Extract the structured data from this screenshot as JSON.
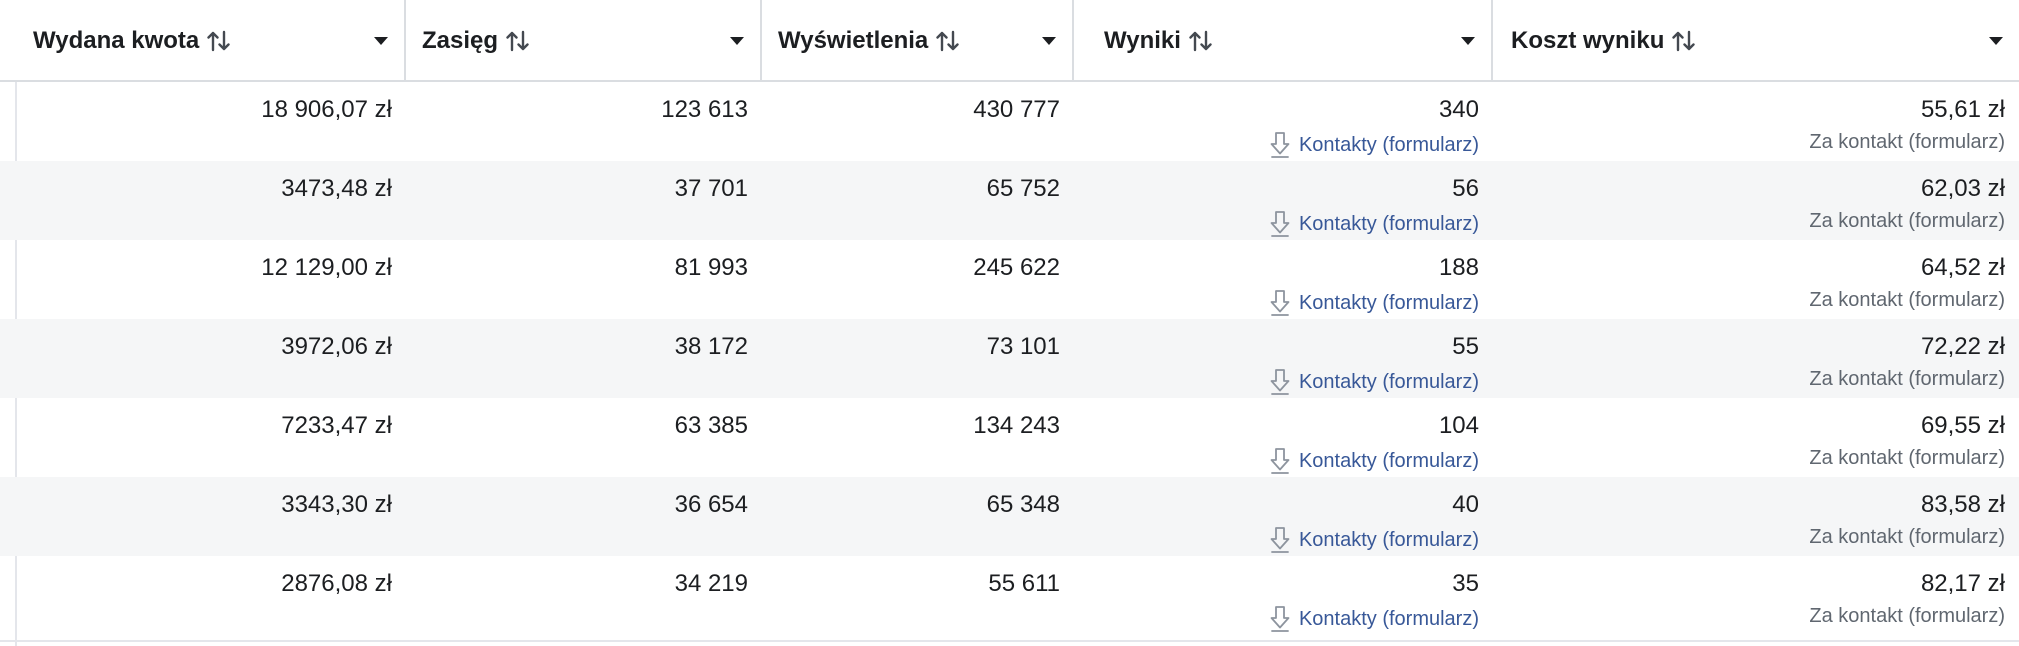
{
  "columns": [
    {
      "label": "Wydana kwota"
    },
    {
      "label": "Zasięg"
    },
    {
      "label": "Wyświetlenia"
    },
    {
      "label": "Wyniki"
    },
    {
      "label": "Koszt wyniku"
    }
  ],
  "rows": [
    {
      "spend": "18 906,07 zł",
      "reach": "123 613",
      "impressions": "430 777",
      "results": "340",
      "result_type": "Kontakty (formularz)",
      "cost": "55,61 zł",
      "cost_type": "Za kontakt (formularz)"
    },
    {
      "spend": "3473,48 zł",
      "reach": "37 701",
      "impressions": "65 752",
      "results": "56",
      "result_type": "Kontakty (formularz)",
      "cost": "62,03 zł",
      "cost_type": "Za kontakt (formularz)"
    },
    {
      "spend": "12 129,00 zł",
      "reach": "81 993",
      "impressions": "245 622",
      "results": "188",
      "result_type": "Kontakty (formularz)",
      "cost": "64,52 zł",
      "cost_type": "Za kontakt (formularz)"
    },
    {
      "spend": "3972,06 zł",
      "reach": "38 172",
      "impressions": "73 101",
      "results": "55",
      "result_type": "Kontakty (formularz)",
      "cost": "72,22 zł",
      "cost_type": "Za kontakt (formularz)"
    },
    {
      "spend": "7233,47 zł",
      "reach": "63 385",
      "impressions": "134 243",
      "results": "104",
      "result_type": "Kontakty (formularz)",
      "cost": "69,55 zł",
      "cost_type": "Za kontakt (formularz)"
    },
    {
      "spend": "3343,30 zł",
      "reach": "36 654",
      "impressions": "65 348",
      "results": "40",
      "result_type": "Kontakty (formularz)",
      "cost": "83,58 zł",
      "cost_type": "Za kontakt (formularz)"
    },
    {
      "spend": "2876,08 zł",
      "reach": "34 219",
      "impressions": "55 611",
      "results": "35",
      "result_type": "Kontakty (formularz)",
      "cost": "82,17 zł",
      "cost_type": "Za kontakt (formularz)"
    }
  ],
  "icons": {
    "sort": "sort-arrows-icon",
    "dropdown": "caret-down-icon",
    "result_type": "download-arrow-icon"
  },
  "colors": {
    "link": "#385898",
    "muted": "#606770",
    "alt_row": "#f5f6f7",
    "border": "#dadde1"
  }
}
